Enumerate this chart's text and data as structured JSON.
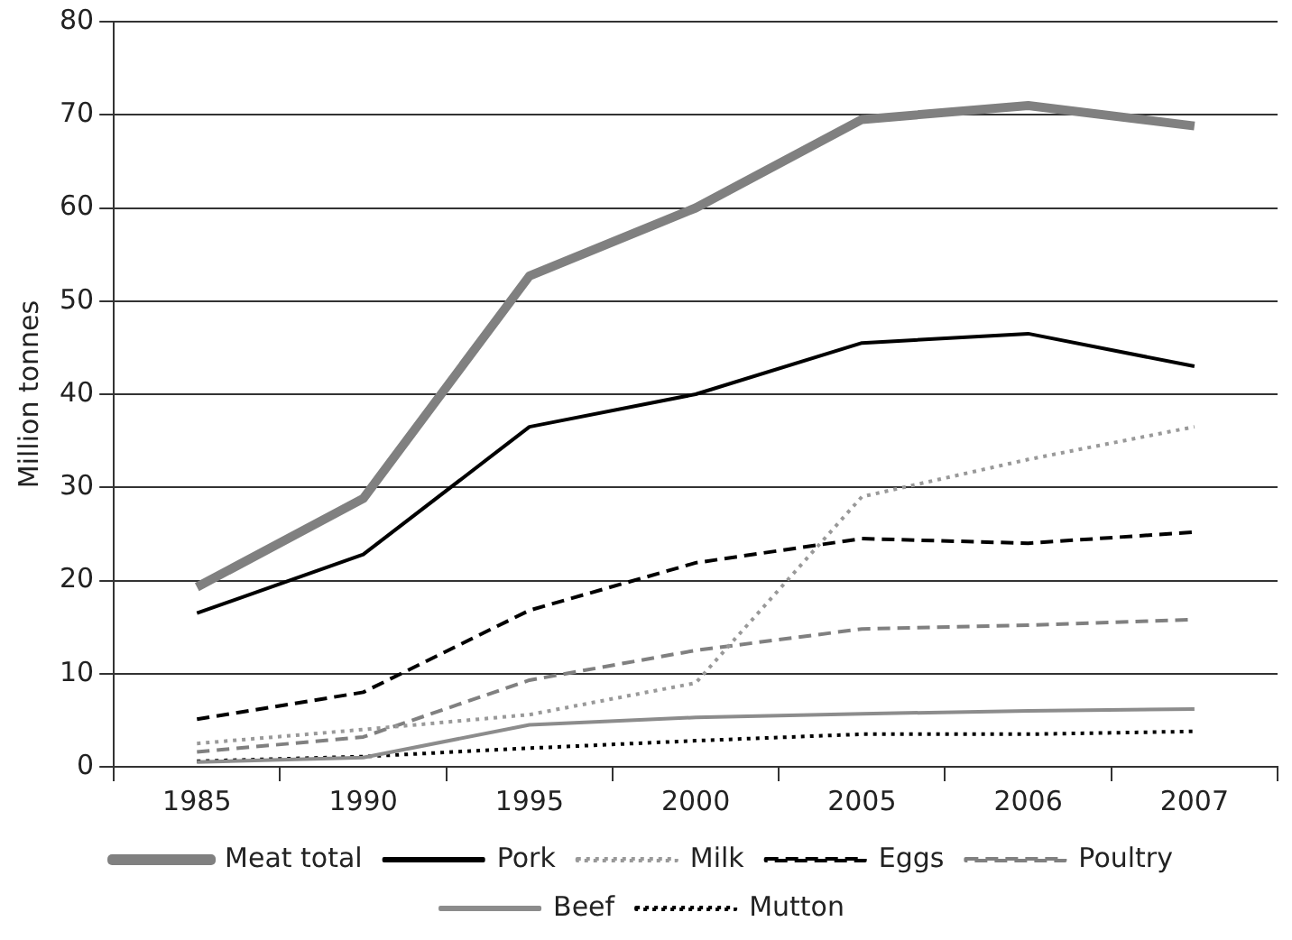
{
  "chart_data": {
    "type": "line",
    "ylabel": "Million tonnes",
    "categories": [
      "1985",
      "1990",
      "1995",
      "2000",
      "2005",
      "2006",
      "2007"
    ],
    "ylim": [
      0,
      80
    ],
    "yticks": [
      0,
      10,
      20,
      30,
      40,
      50,
      60,
      70,
      80
    ],
    "grid": "y",
    "legend": "bottom",
    "marker": "none",
    "series": [
      {
        "name": "Meat total",
        "color": "#808080",
        "line_style": "solid",
        "values": [
          19.3,
          28.8,
          52.7,
          60,
          69.5,
          71,
          68.8
        ]
      },
      {
        "name": "Pork",
        "color": "#000000",
        "line_style": "solid",
        "values": [
          16.5,
          22.8,
          36.5,
          40,
          45.5,
          46.5,
          43
        ]
      },
      {
        "name": "Milk",
        "color": "#999999",
        "line_style": "dotted",
        "values": [
          2.5,
          4,
          5.6,
          9,
          29,
          33,
          36.5
        ]
      },
      {
        "name": "Eggs",
        "color": "#000000",
        "line_style": "dashed",
        "values": [
          5.1,
          8,
          16.8,
          21.9,
          24.5,
          24,
          25.2
        ]
      },
      {
        "name": "Poultry",
        "color": "#808080",
        "line_style": "dashed",
        "values": [
          1.6,
          3.2,
          9.3,
          12.5,
          14.8,
          15.2,
          15.8
        ]
      },
      {
        "name": "Beef",
        "color": "#8c8c8c",
        "line_style": "solid",
        "values": [
          0.5,
          1.0,
          4.5,
          5.3,
          5.7,
          6,
          6.2
        ]
      },
      {
        "name": "Mutton",
        "color": "#000000",
        "line_style": "dotted",
        "values": [
          0.6,
          1.1,
          2.0,
          2.8,
          3.5,
          3.5,
          3.8
        ]
      }
    ]
  }
}
